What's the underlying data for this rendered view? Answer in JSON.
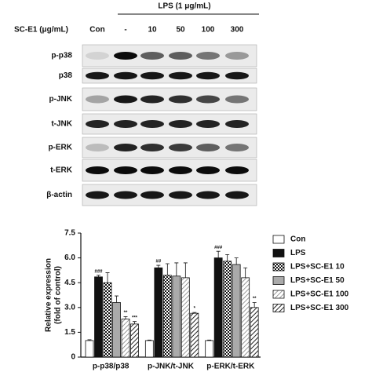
{
  "blot": {
    "treatment_label": "LPS (1 μg/mL)",
    "dose_label": "SC-E1 (μg/mL)",
    "lanes": [
      "Con",
      "-",
      "10",
      "50",
      "100",
      "300"
    ],
    "rows": [
      "p-p38",
      "p38",
      "p-JNK",
      "t-JNK",
      "p-ERK",
      "t-ERK",
      "β-actin"
    ]
  },
  "chart_data": {
    "type": "bar",
    "y_label": [
      "Relative expression",
      "(fold of control)"
    ],
    "categories": [
      "p-p38/p38",
      "p-JNK/t-JNK",
      "p-ERK/t-ERK"
    ],
    "ylim": [
      0,
      7.5
    ],
    "yticks": [
      0,
      1.5,
      {
        "value": 3,
        "label": "3.0"
      },
      4.5,
      {
        "value": 6,
        "label": "6.0"
      },
      7.5
    ],
    "legend": "right",
    "series": [
      {
        "name": "Con",
        "color": "#ffffff",
        "pattern": "solid",
        "values": [
          1.0,
          1.0,
          1.0
        ],
        "errors": [
          0.05,
          0.03,
          0.03
        ],
        "significance": [
          null,
          null,
          null
        ]
      },
      {
        "name": "LPS",
        "color": "#111111",
        "pattern": "solid",
        "values": [
          4.85,
          5.4,
          6.0
        ],
        "errors": [
          0.1,
          0.15,
          0.4
        ],
        "significance": [
          "###",
          "##",
          "###"
        ]
      },
      {
        "name": "LPS+SC-E1 10",
        "color": "#111111",
        "pattern": "checker",
        "values": [
          4.5,
          4.95,
          5.8
        ],
        "errors": [
          0.6,
          0.7,
          0.4
        ],
        "significance": [
          null,
          null,
          null
        ]
      },
      {
        "name": "LPS+SC-E1 50",
        "color": "#aaaaaa",
        "pattern": "solid",
        "values": [
          3.3,
          4.9,
          5.6
        ],
        "errors": [
          0.4,
          0.8,
          0.4
        ],
        "significance": [
          null,
          null,
          null
        ]
      },
      {
        "name": "LPS+SC-E1 100",
        "color": "#777777",
        "pattern": "hatch-light",
        "values": [
          2.3,
          4.8,
          4.8
        ],
        "errors": [
          0.15,
          0.9,
          0.6
        ],
        "significance": [
          "**",
          null,
          null
        ]
      },
      {
        "name": "LPS+SC-E1 300",
        "color": "#222222",
        "pattern": "hatch",
        "values": [
          2.0,
          2.65,
          3.0
        ],
        "errors": [
          0.15,
          0.05,
          0.3
        ],
        "significance": [
          "***",
          "*",
          "**"
        ]
      }
    ]
  }
}
